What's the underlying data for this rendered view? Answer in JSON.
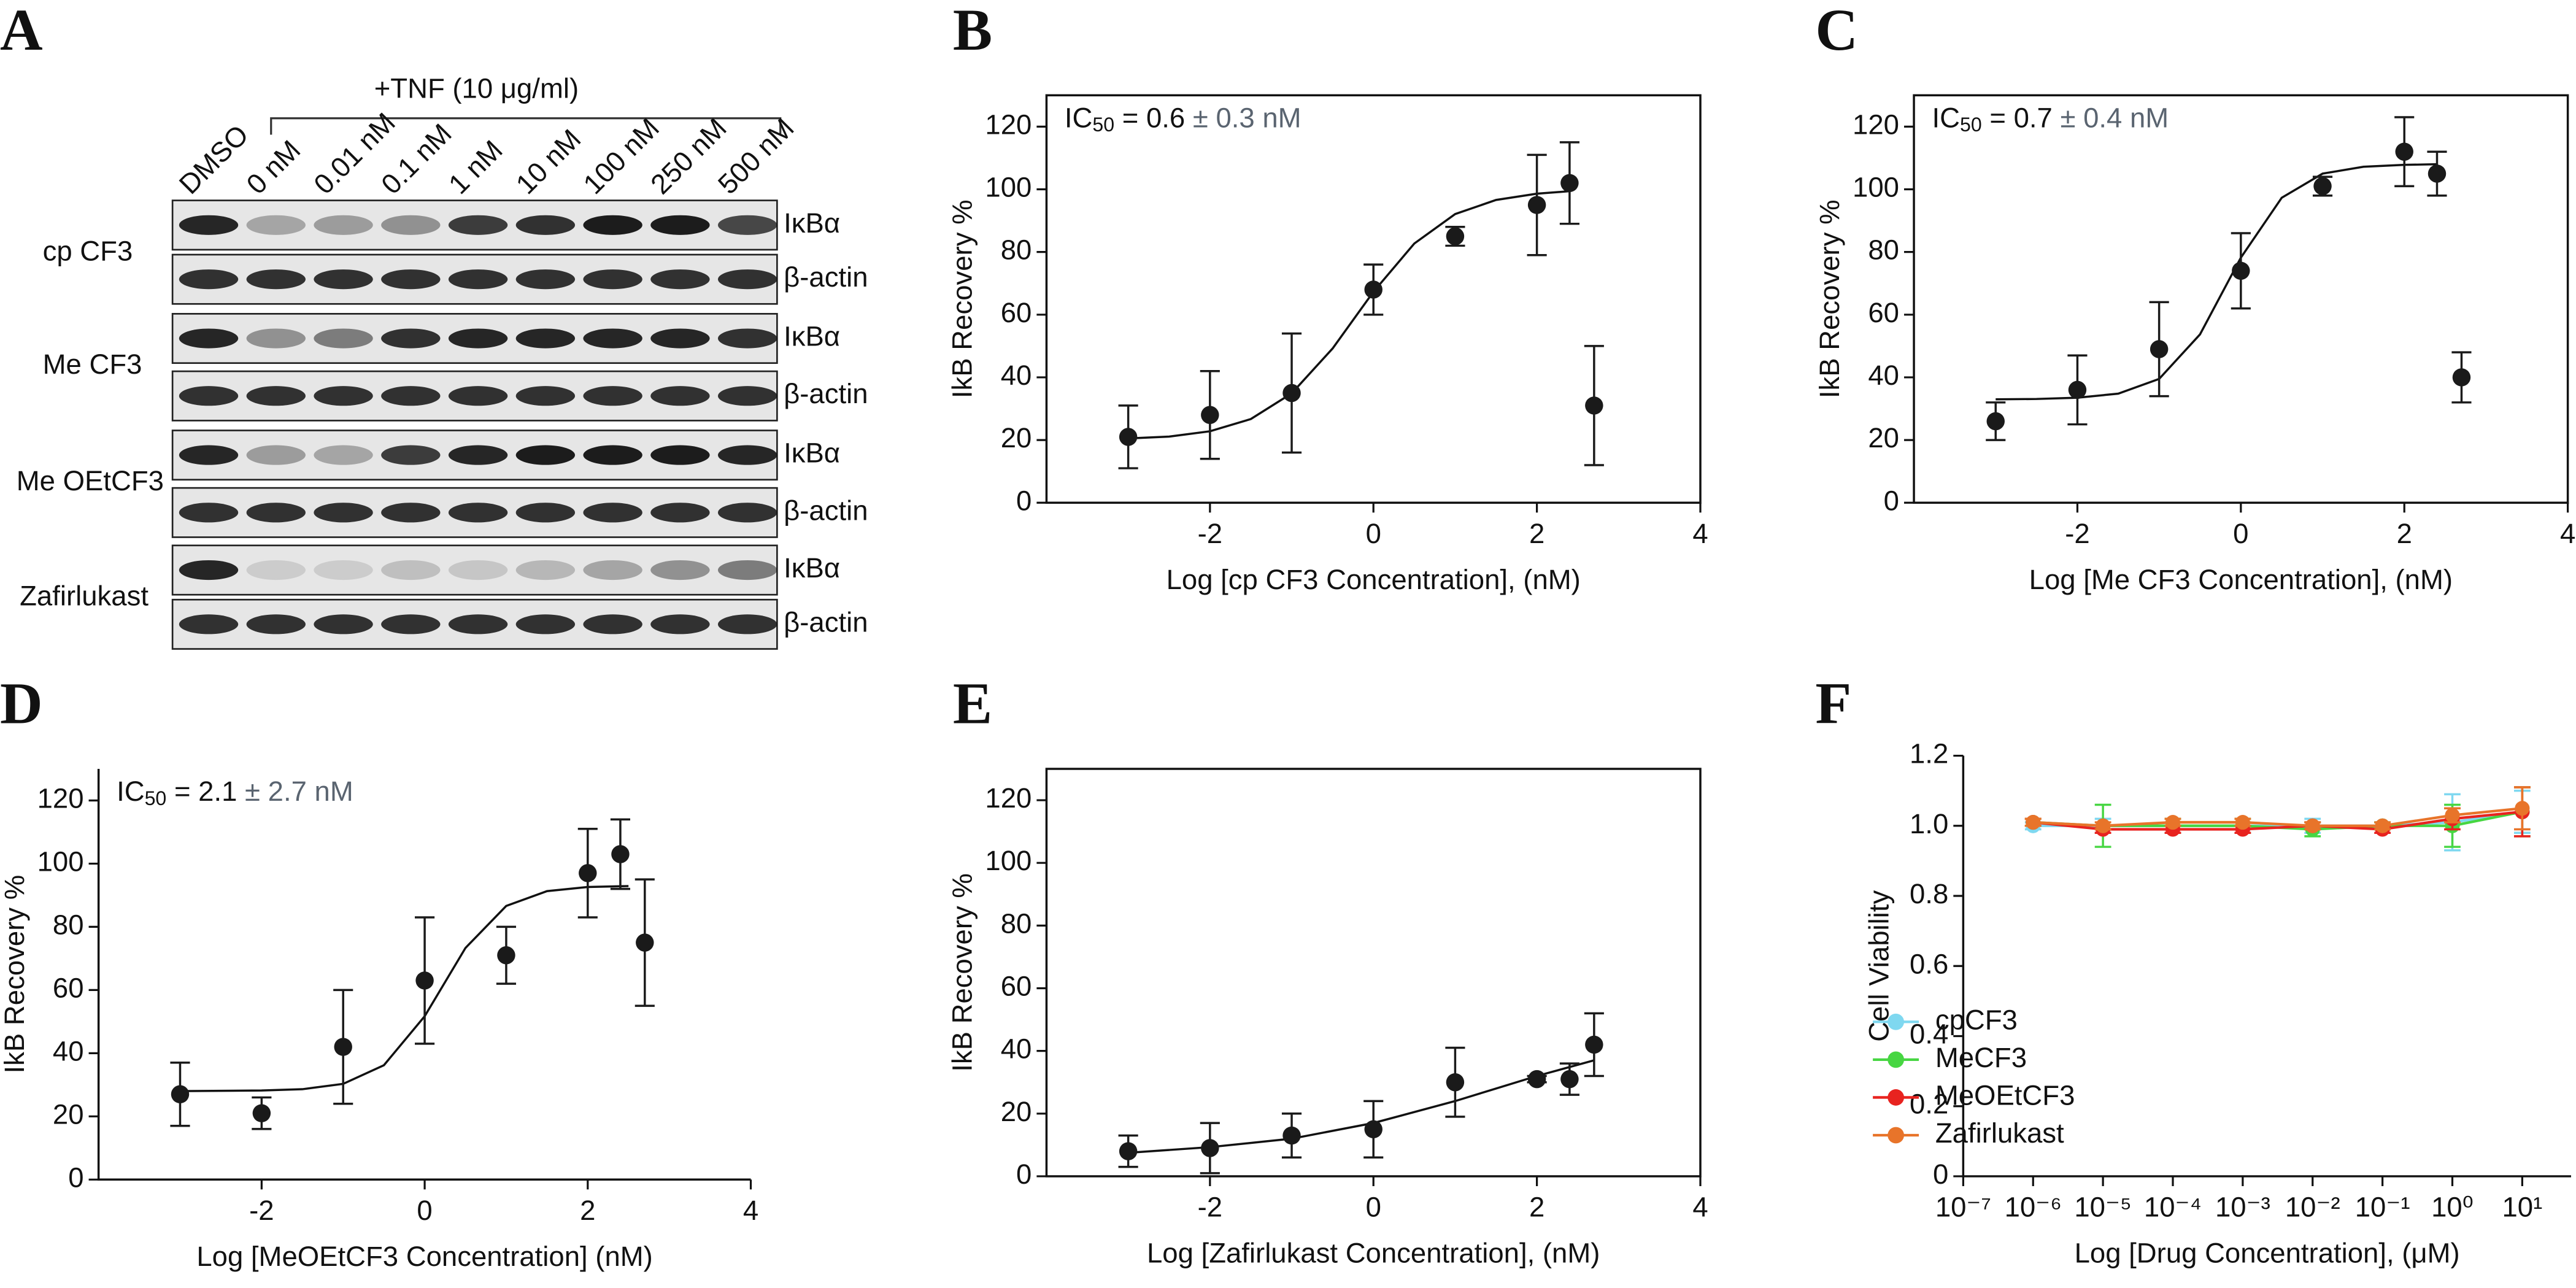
{
  "blot": {
    "label": "A",
    "treatment": "+TNF (10 μg/ml)",
    "lanes": [
      "DMSO",
      "0 nM",
      "0.01 nM",
      "0.1 nM",
      "1 nM",
      "10 nM",
      "100 nM",
      "250 nM",
      "500 nM"
    ],
    "rows": [
      "cp CF3",
      "Me CF3",
      "Me OEtCF3",
      "Zafirlukast"
    ],
    "bands": [
      "IκBα",
      "β-actin"
    ]
  },
  "chart_data": [
    {
      "label": "B",
      "type": "scatter",
      "box": true,
      "color": "#1a1a1a",
      "annotation": {
        "prefix": "IC",
        "sub": "50",
        "value": " = 0.6",
        "error": " ± 0.3 nM"
      },
      "x_label": "Log [cp CF3 Concentration], (nM)",
      "y_label": "IkB Recovery %",
      "x": [
        -3,
        -2,
        -1,
        0,
        1,
        2,
        2.4,
        2.7
      ],
      "values": [
        21,
        28,
        35,
        68,
        85,
        95,
        102,
        31
      ],
      "errors": [
        10,
        14,
        19,
        8,
        3,
        16,
        13,
        19
      ],
      "fit": {
        "x": [
          -3,
          -2.5,
          -2,
          -1.5,
          -1,
          -0.5,
          0,
          0.5,
          1,
          1.5,
          2,
          2.4
        ],
        "y": [
          20.5,
          21.1,
          22.8,
          26.7,
          34.9,
          49.2,
          67.3,
          82.7,
          92.1,
          96.6,
          98.6,
          99.4
        ]
      },
      "xlim": [
        -4,
        4
      ],
      "xticks": [
        -2,
        0,
        2,
        4
      ],
      "ylim": [
        0,
        130
      ],
      "yticks": [
        0,
        20,
        40,
        60,
        80,
        100,
        120
      ]
    },
    {
      "label": "C",
      "type": "scatter",
      "box": true,
      "color": "#1a1a1a",
      "annotation": {
        "prefix": "IC",
        "sub": "50",
        "value": " = 0.7",
        "error": " ± 0.4 nM"
      },
      "x_label": "Log [Me CF3 Concentration], (nM)",
      "y_label": "IkB Recovery %",
      "x": [
        -3,
        -2,
        -1,
        0,
        1,
        2,
        2.4,
        2.7
      ],
      "values": [
        26,
        36,
        49,
        74,
        101,
        112,
        105,
        40
      ],
      "errors": [
        6,
        11,
        15,
        12,
        3,
        11,
        7,
        8
      ],
      "fit": {
        "x": [
          -3,
          -2.5,
          -2,
          -1.5,
          -1,
          -0.5,
          0,
          0.5,
          1,
          1.5,
          2,
          2.4
        ],
        "y": [
          33,
          33.1,
          33.5,
          34.8,
          39.5,
          53.7,
          78.2,
          97.3,
          105,
          107.2,
          107.8,
          108
        ]
      },
      "xlim": [
        -4,
        4
      ],
      "xticks": [
        -2,
        0,
        2,
        4
      ],
      "ylim": [
        0,
        130
      ],
      "yticks": [
        0,
        20,
        40,
        60,
        80,
        100,
        120
      ]
    },
    {
      "label": "D",
      "type": "scatter",
      "box": false,
      "color": "#1a1a1a",
      "annotation": {
        "prefix": "IC",
        "sub": "50",
        "value": " = 2.1",
        "error": " ± 2.7 nM"
      },
      "x_label": "Log [MeOEtCF3 Concentration] (nM)",
      "y_label": "IkB Recovery %",
      "x": [
        -3,
        -2,
        -1,
        0,
        1,
        2,
        2.4,
        2.7
      ],
      "values": [
        27,
        21,
        42,
        63,
        71,
        97,
        103,
        75
      ],
      "errors": [
        10,
        5,
        18,
        20,
        9,
        14,
        11,
        20
      ],
      "fit": {
        "x": [
          -3,
          -2,
          -1.5,
          -1,
          -0.5,
          0,
          0.5,
          1,
          1.5,
          2,
          2.5
        ],
        "y": [
          28,
          28.2,
          28.6,
          30.3,
          36.2,
          51.7,
          73.3,
          86.6,
          91.3,
          92.6,
          92.9
        ]
      },
      "xlim": [
        -4,
        4
      ],
      "xticks": [
        -2,
        0,
        2,
        4
      ],
      "ylim": [
        0,
        130
      ],
      "yticks": [
        0,
        20,
        40,
        60,
        80,
        100,
        120
      ]
    },
    {
      "label": "E",
      "type": "scatter",
      "box": true,
      "color": "#1a1a1a",
      "x_label": "Log [Zafirlukast Concentration], (nM)",
      "y_label": "IkB Recovery %",
      "x": [
        -3,
        -2,
        -1,
        0,
        1,
        2,
        2.4,
        2.7
      ],
      "values": [
        8,
        9,
        13,
        15,
        30,
        31,
        31,
        42
      ],
      "errors": [
        5,
        8,
        7,
        9,
        11,
        1,
        5,
        10
      ],
      "fit": {
        "x": [
          -3,
          -2,
          -1,
          0,
          1,
          2,
          2.7
        ],
        "y": [
          7.5,
          9.3,
          12,
          17,
          24,
          32,
          37
        ]
      },
      "xlim": [
        -4,
        4
      ],
      "xticks": [
        -2,
        0,
        2,
        4
      ],
      "ylim": [
        0,
        130
      ],
      "yticks": [
        0,
        20,
        40,
        60,
        80,
        100,
        120
      ]
    },
    {
      "label": "F",
      "type": "line",
      "box": false,
      "xscale": "log",
      "legend": "lower left",
      "x_label": "Log [Drug Concentration], (μM)",
      "y_label": "Cell Viability",
      "x": [
        1e-06,
        1e-05,
        0.0001,
        0.001,
        0.01,
        0.1,
        1,
        10
      ],
      "series": [
        {
          "name": "cpCF3",
          "color": "#7fd8f0",
          "values": [
            1.0,
            1.0,
            1.0,
            1.0,
            1.0,
            1.0,
            1.01,
            1.04
          ],
          "errors": [
            0.01,
            0.02,
            0.01,
            0.01,
            0.02,
            0.01,
            0.08,
            0.06
          ]
        },
        {
          "name": "MeCF3",
          "color": "#47d642",
          "values": [
            1.01,
            1.0,
            1.0,
            1.0,
            0.99,
            1.0,
            1.0,
            1.04
          ],
          "errors": [
            0.01,
            0.06,
            0.02,
            0.02,
            0.02,
            0.01,
            0.06,
            0.07
          ]
        },
        {
          "name": "MeOEtCF3",
          "color": "#e8231f",
          "values": [
            1.01,
            0.99,
            0.99,
            0.99,
            1.0,
            0.99,
            1.02,
            1.04
          ],
          "errors": [
            0.01,
            0.01,
            0.01,
            0.01,
            0.01,
            0.01,
            0.03,
            0.07
          ]
        },
        {
          "name": "Zafirlukast",
          "color": "#e8742a",
          "values": [
            1.01,
            1.0,
            1.01,
            1.01,
            1.0,
            1.0,
            1.03,
            1.05
          ],
          "errors": [
            0.01,
            0.01,
            0.01,
            0.01,
            0.01,
            0.01,
            0.02,
            0.06
          ]
        }
      ],
      "xlim": [
        1e-07,
        50
      ],
      "xticks": [
        {
          "value": 1e-07,
          "label": "10⁻⁷"
        },
        {
          "value": 1e-06,
          "label": "10⁻⁶"
        },
        {
          "value": 1e-05,
          "label": "10⁻⁵"
        },
        {
          "value": 0.0001,
          "label": "10⁻⁴"
        },
        {
          "value": 0.001,
          "label": "10⁻³"
        },
        {
          "value": 0.01,
          "label": "10⁻²"
        },
        {
          "value": 0.1,
          "label": "10⁻¹"
        },
        {
          "value": 1,
          "label": "10⁰"
        },
        {
          "value": 10,
          "label": "10¹"
        }
      ],
      "ylim": [
        0,
        1.2
      ],
      "yticks": [
        0,
        0.2,
        0.4,
        0.6,
        0.8,
        {
          "value": 1,
          "label": "1.0"
        },
        1.2
      ]
    }
  ]
}
